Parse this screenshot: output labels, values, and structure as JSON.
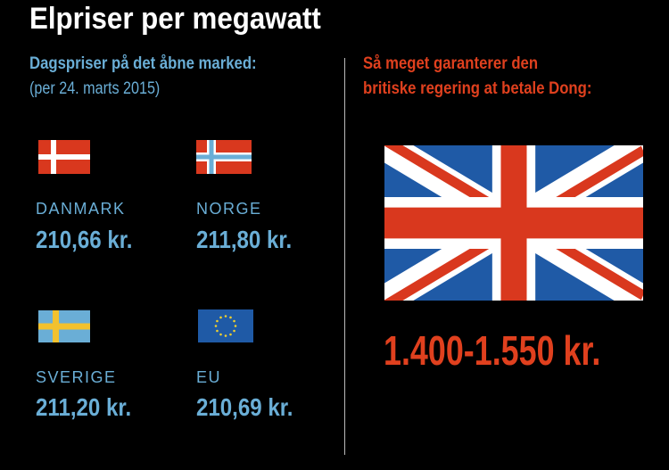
{
  "title": "Elpriser per megawatt",
  "left": {
    "heading": "Dagspriser på det åbne marked:",
    "subheading": "(per 24. marts 2015)",
    "countries": [
      {
        "name": "DANMARK",
        "price": "210,66 kr.",
        "flag": "denmark-flag"
      },
      {
        "name": "NORGE",
        "price": "211,80 kr.",
        "flag": "norway-flag"
      },
      {
        "name": "SVERIGE",
        "price": "211,20 kr.",
        "flag": "sweden-flag"
      },
      {
        "name": "EU",
        "price": "210,69 kr.",
        "flag": "eu-flag"
      }
    ]
  },
  "right": {
    "heading_line1": "Så meget garanterer den",
    "heading_line2": "britiske regering at betale Dong:",
    "price": "1.400-1.550 kr.",
    "flag": "uk-flag"
  },
  "colors": {
    "blue_text": "#6aaed6",
    "red_text": "#e0401e",
    "background": "#000000"
  }
}
